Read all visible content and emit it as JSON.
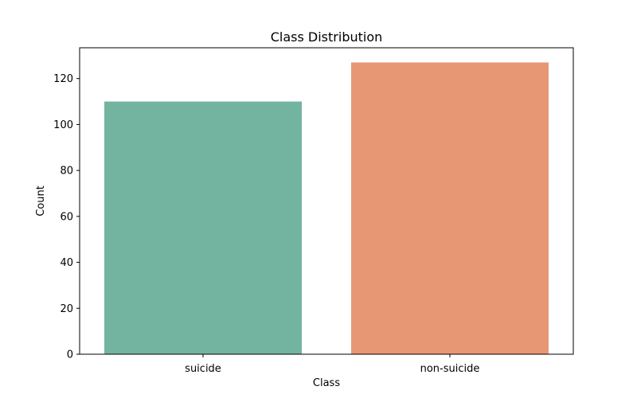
{
  "chart_data": {
    "type": "bar",
    "title": "Class Distribution",
    "xlabel": "Class",
    "ylabel": "Count",
    "categories": [
      "suicide",
      "non-suicide"
    ],
    "values": [
      110,
      127
    ],
    "colors": [
      "#73b4a0",
      "#e89774"
    ],
    "ylim": [
      0,
      133.4
    ],
    "yticks": [
      0,
      20,
      40,
      60,
      80,
      100,
      120
    ],
    "grid": false
  }
}
